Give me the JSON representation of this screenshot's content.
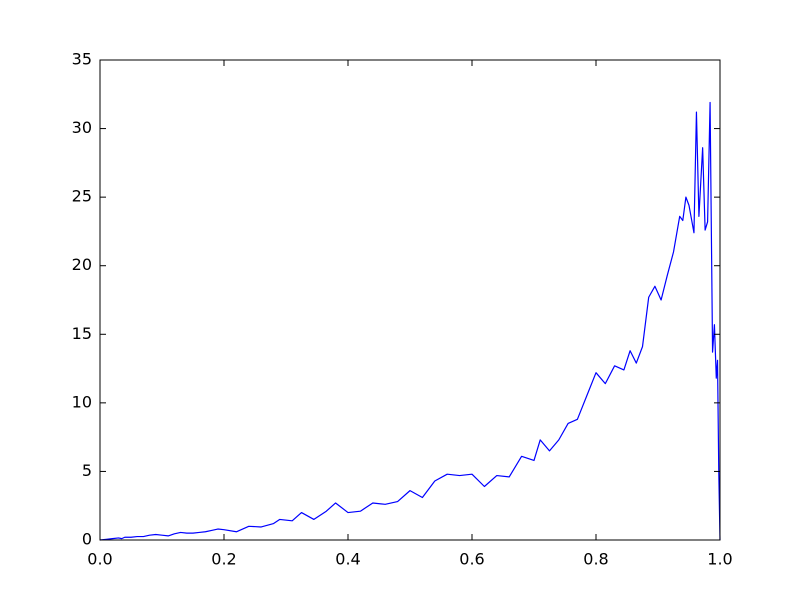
{
  "chart_data": {
    "type": "line",
    "title": "",
    "xlabel": "",
    "ylabel": "",
    "xlim": [
      0.0,
      1.0
    ],
    "ylim": [
      0,
      35
    ],
    "x_ticks": [
      "0.0",
      "0.2",
      "0.4",
      "0.6",
      "0.8",
      "1.0"
    ],
    "y_ticks": [
      "0",
      "5",
      "10",
      "15",
      "20",
      "25",
      "30",
      "35"
    ],
    "grid": false,
    "legend": "none",
    "series": [
      {
        "color": "#0000ff",
        "x": [
          0.0,
          0.01,
          0.02,
          0.03,
          0.035,
          0.04,
          0.05,
          0.06,
          0.07,
          0.08,
          0.09,
          0.1,
          0.11,
          0.12,
          0.13,
          0.14,
          0.15,
          0.16,
          0.17,
          0.18,
          0.19,
          0.2,
          0.22,
          0.24,
          0.26,
          0.28,
          0.29,
          0.31,
          0.325,
          0.345,
          0.365,
          0.38,
          0.4,
          0.42,
          0.44,
          0.46,
          0.48,
          0.5,
          0.52,
          0.54,
          0.56,
          0.58,
          0.6,
          0.62,
          0.64,
          0.66,
          0.68,
          0.7,
          0.71,
          0.725,
          0.74,
          0.755,
          0.77,
          0.785,
          0.8,
          0.815,
          0.83,
          0.845,
          0.855,
          0.865,
          0.875,
          0.885,
          0.895,
          0.905,
          0.915,
          0.925,
          0.935,
          0.94,
          0.945,
          0.95,
          0.958,
          0.962,
          0.966,
          0.972,
          0.976,
          0.98,
          0.984,
          0.988,
          0.991,
          0.994,
          0.996,
          0.998,
          1.0
        ],
        "y": [
          0.0,
          0.05,
          0.1,
          0.15,
          0.1,
          0.2,
          0.2,
          0.25,
          0.25,
          0.35,
          0.4,
          0.35,
          0.3,
          0.45,
          0.55,
          0.5,
          0.5,
          0.55,
          0.6,
          0.7,
          0.8,
          0.75,
          0.6,
          1.0,
          0.95,
          1.2,
          1.5,
          1.4,
          2.0,
          1.5,
          2.1,
          2.7,
          2.0,
          2.1,
          2.7,
          2.6,
          2.8,
          3.6,
          3.1,
          4.3,
          4.8,
          4.7,
          4.8,
          3.9,
          4.7,
          4.6,
          6.1,
          5.8,
          7.3,
          6.5,
          7.3,
          8.5,
          8.8,
          10.5,
          12.2,
          11.4,
          12.7,
          12.4,
          13.8,
          12.9,
          14.1,
          17.7,
          18.5,
          17.5,
          19.3,
          21.0,
          23.6,
          23.3,
          25.0,
          24.4,
          22.4,
          31.2,
          23.6,
          28.6,
          22.6,
          23.2,
          31.9,
          13.7,
          15.7,
          11.8,
          13.1,
          5.0,
          0.0
        ]
      }
    ]
  }
}
